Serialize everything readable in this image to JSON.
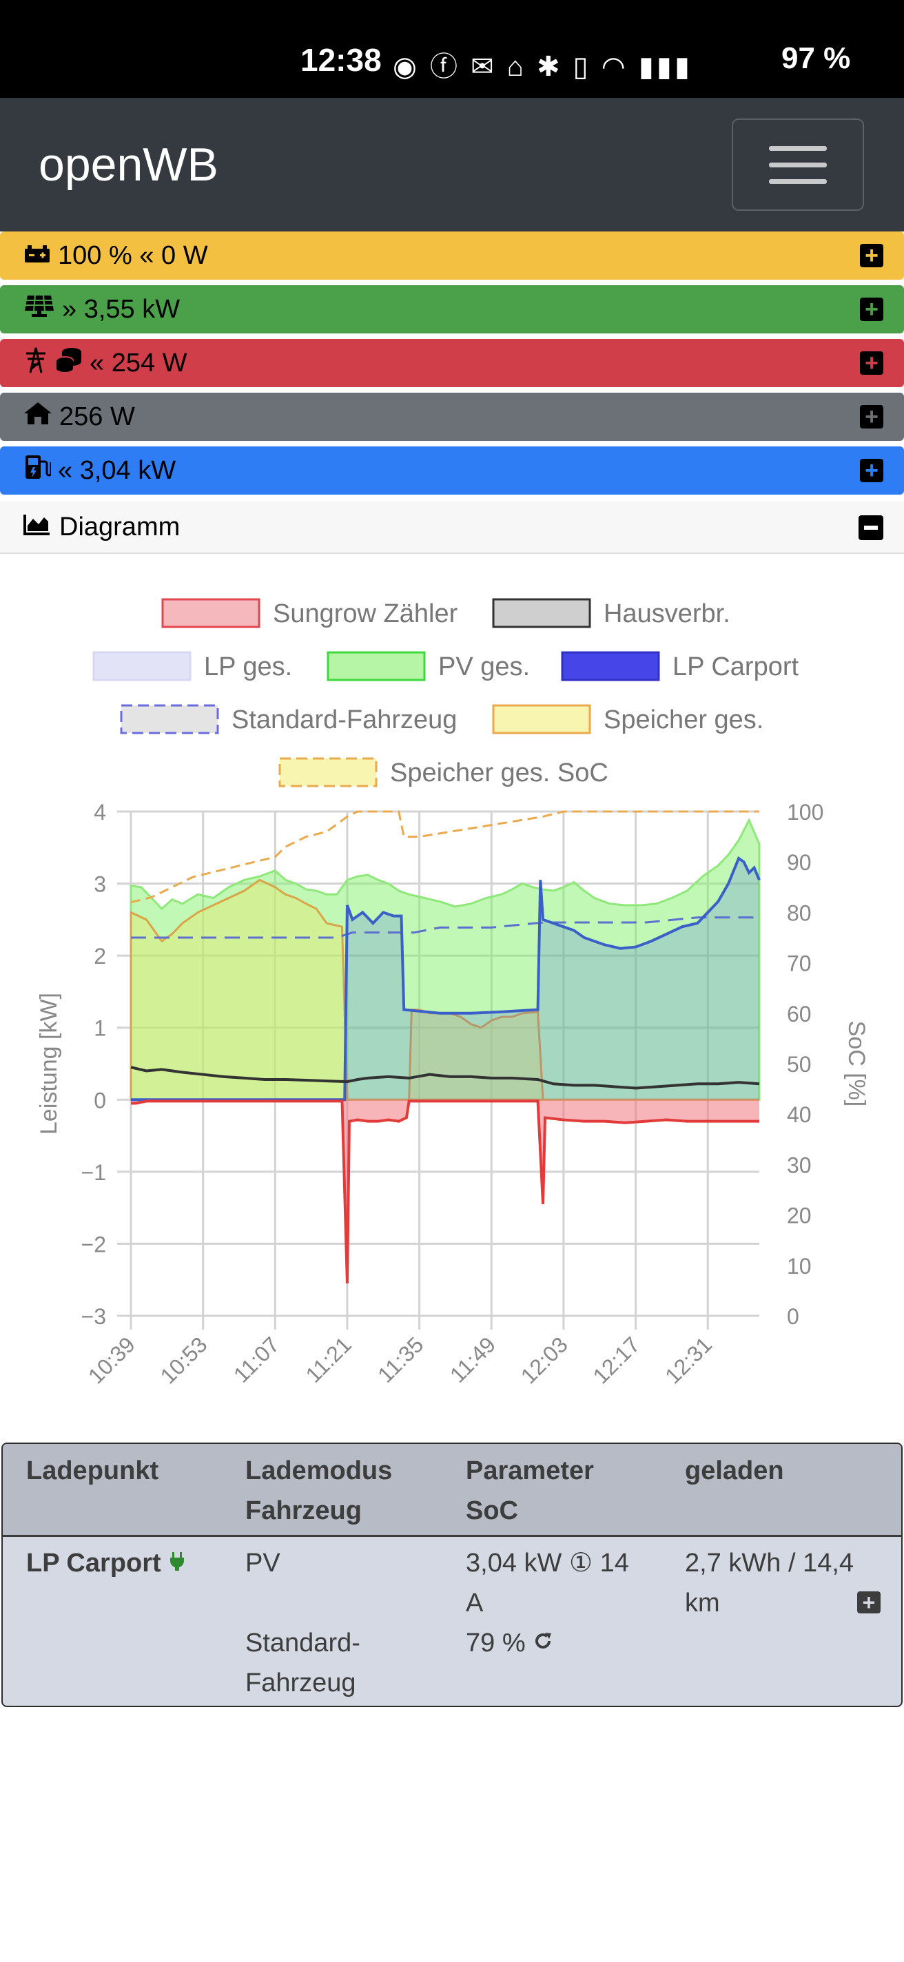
{
  "status_bar": {
    "time": "12:38",
    "icons": [
      "whatsapp-icon",
      "facebook-icon",
      "mail-icon",
      "smart-zone-icon",
      "bluetooth-icon",
      "vibrate-icon",
      "wifi-icon",
      "signal-icon",
      "battery-icon"
    ],
    "battery": "97 %"
  },
  "navbar": {
    "brand": "openWB"
  },
  "bars": {
    "battery": {
      "text": "100 % « 0 W",
      "color": "#f3c041"
    },
    "pv": {
      "text": "» 3,55 kW",
      "color": "#4ba14a"
    },
    "grid": {
      "text": "« 254 W",
      "color": "#cf3e49"
    },
    "house": {
      "text": "256 W",
      "color": "#6c7178"
    },
    "charge": {
      "text": "« 3,04 kW",
      "color": "#2f7df4"
    }
  },
  "diagram": {
    "title": "Diagramm"
  },
  "chart_data": {
    "type": "area",
    "legend": [
      {
        "name": "Sungrow Zähler",
        "fill": "#f5b9bd",
        "stroke": "#e0474f",
        "dashed": false
      },
      {
        "name": "Hausverbr.",
        "fill": "#cfcfcf",
        "stroke": "#333333",
        "dashed": false
      },
      {
        "name": "LP ges.",
        "fill": "#e3e3f8",
        "stroke": "#d7d7f2",
        "dashed": false
      },
      {
        "name": "PV ges.",
        "fill": "#b5f5a5",
        "stroke": "#3fd83f",
        "dashed": false
      },
      {
        "name": "LP Carport",
        "fill": "#4545e8",
        "stroke": "#3131c8",
        "dashed": false
      },
      {
        "name": "Standard-Fahrzeug",
        "fill": "#e4e4e4",
        "stroke": "#6b6be0",
        "dashed": true
      },
      {
        "name": "Speicher ges.",
        "fill": "#f7f5b0",
        "stroke": "#e9a94c",
        "dashed": false
      },
      {
        "name": "Speicher ges. SoC",
        "fill": "#f7f5b0",
        "stroke": "#e9a94c",
        "dashed": true
      }
    ],
    "ylabel_left": "Leistung [kW]",
    "ylabel_right": "SoC [%]",
    "ylim_left": [
      -3,
      4
    ],
    "ylim_right": [
      0,
      100
    ],
    "yticks_left": [
      "4",
      "3",
      "2",
      "1",
      "0",
      "−1",
      "−2",
      "−3"
    ],
    "yticks_right": [
      "100",
      "90",
      "80",
      "70",
      "60",
      "50",
      "40",
      "30",
      "20",
      "10",
      "0"
    ],
    "xticks": [
      "10:39",
      "10:53",
      "11:07",
      "11:21",
      "11:35",
      "11:49",
      "12:03",
      "12:17",
      "12:31"
    ],
    "x_range_min": [
      0,
      122
    ],
    "grid": true,
    "legend_position": "top",
    "series": {
      "pv_ges": [
        [
          0,
          2.97
        ],
        [
          2,
          2.95
        ],
        [
          4,
          2.8
        ],
        [
          6,
          2.65
        ],
        [
          8,
          2.78
        ],
        [
          10,
          2.72
        ],
        [
          13,
          2.85
        ],
        [
          16,
          2.8
        ],
        [
          19,
          2.95
        ],
        [
          22,
          3.05
        ],
        [
          25,
          3.1
        ],
        [
          28,
          3.18
        ],
        [
          30,
          3.05
        ],
        [
          32,
          3.0
        ],
        [
          34,
          2.92
        ],
        [
          36,
          2.9
        ],
        [
          38,
          2.85
        ],
        [
          40,
          2.85
        ],
        [
          42,
          3.05
        ],
        [
          44,
          3.1
        ],
        [
          46,
          3.12
        ],
        [
          48,
          3.05
        ],
        [
          50,
          3.0
        ],
        [
          52,
          2.9
        ],
        [
          54,
          2.85
        ],
        [
          57,
          2.8
        ],
        [
          60,
          2.75
        ],
        [
          63,
          2.68
        ],
        [
          66,
          2.72
        ],
        [
          69,
          2.8
        ],
        [
          72,
          2.85
        ],
        [
          74,
          2.92
        ],
        [
          76,
          3.0
        ],
        [
          78,
          2.95
        ],
        [
          80,
          2.92
        ],
        [
          82,
          2.9
        ],
        [
          84,
          2.95
        ],
        [
          86,
          3.02
        ],
        [
          88,
          2.9
        ],
        [
          90,
          2.8
        ],
        [
          93,
          2.72
        ],
        [
          96,
          2.7
        ],
        [
          99,
          2.7
        ],
        [
          102,
          2.72
        ],
        [
          105,
          2.8
        ],
        [
          108,
          2.9
        ],
        [
          111,
          3.1
        ],
        [
          114,
          3.25
        ],
        [
          116,
          3.4
        ],
        [
          118,
          3.6
        ],
        [
          120,
          3.88
        ],
        [
          122,
          3.55
        ]
      ],
      "speicher_ges": [
        [
          0,
          2.6
        ],
        [
          3,
          2.5
        ],
        [
          6,
          2.2
        ],
        [
          8,
          2.3
        ],
        [
          10,
          2.45
        ],
        [
          13,
          2.6
        ],
        [
          16,
          2.7
        ],
        [
          19,
          2.8
        ],
        [
          22,
          2.9
        ],
        [
          25,
          3.05
        ],
        [
          28,
          2.95
        ],
        [
          30,
          2.85
        ],
        [
          32,
          2.8
        ],
        [
          34,
          2.72
        ],
        [
          36,
          2.65
        ],
        [
          38,
          2.45
        ],
        [
          41,
          2.4
        ],
        [
          42,
          0.0
        ],
        [
          54,
          0.0
        ],
        [
          54.5,
          1.25
        ],
        [
          56,
          1.25
        ],
        [
          58,
          1.2
        ],
        [
          60,
          1.2
        ],
        [
          62,
          1.2
        ],
        [
          64,
          1.15
        ],
        [
          66,
          1.05
        ],
        [
          68,
          1.0
        ],
        [
          70,
          1.1
        ],
        [
          72,
          1.15
        ],
        [
          74,
          1.15
        ],
        [
          76,
          1.2
        ],
        [
          79,
          1.22
        ],
        [
          80,
          0.0
        ],
        [
          122,
          0.0
        ]
      ],
      "hausverbr": [
        [
          0,
          0.45
        ],
        [
          3,
          0.4
        ],
        [
          6,
          0.42
        ],
        [
          10,
          0.38
        ],
        [
          14,
          0.35
        ],
        [
          18,
          0.32
        ],
        [
          22,
          0.3
        ],
        [
          26,
          0.28
        ],
        [
          30,
          0.28
        ],
        [
          34,
          0.27
        ],
        [
          38,
          0.26
        ],
        [
          42,
          0.25
        ],
        [
          44,
          0.28
        ],
        [
          46,
          0.3
        ],
        [
          50,
          0.32
        ],
        [
          54,
          0.3
        ],
        [
          58,
          0.35
        ],
        [
          62,
          0.32
        ],
        [
          66,
          0.32
        ],
        [
          70,
          0.3
        ],
        [
          74,
          0.3
        ],
        [
          79,
          0.28
        ],
        [
          82,
          0.22
        ],
        [
          86,
          0.2
        ],
        [
          90,
          0.2
        ],
        [
          94,
          0.18
        ],
        [
          98,
          0.16
        ],
        [
          102,
          0.18
        ],
        [
          106,
          0.2
        ],
        [
          110,
          0.22
        ],
        [
          114,
          0.22
        ],
        [
          118,
          0.24
        ],
        [
          122,
          0.22
        ]
      ],
      "sungrow_zaehler": [
        [
          0,
          -0.05
        ],
        [
          1,
          -0.05
        ],
        [
          3,
          -0.02
        ],
        [
          6,
          -0.02
        ],
        [
          10,
          -0.02
        ],
        [
          20,
          -0.02
        ],
        [
          30,
          -0.02
        ],
        [
          41,
          -0.02
        ],
        [
          42,
          -2.55
        ],
        [
          42.4,
          -0.3
        ],
        [
          44,
          -0.28
        ],
        [
          46,
          -0.3
        ],
        [
          48,
          -0.3
        ],
        [
          50,
          -0.28
        ],
        [
          52,
          -0.3
        ],
        [
          53.5,
          -0.25
        ],
        [
          54,
          -0.02
        ],
        [
          60,
          -0.02
        ],
        [
          70,
          -0.02
        ],
        [
          79,
          -0.02
        ],
        [
          80,
          -1.45
        ],
        [
          80.4,
          -0.25
        ],
        [
          84,
          -0.28
        ],
        [
          88,
          -0.3
        ],
        [
          92,
          -0.3
        ],
        [
          96,
          -0.32
        ],
        [
          100,
          -0.3
        ],
        [
          104,
          -0.28
        ],
        [
          108,
          -0.3
        ],
        [
          112,
          -0.3
        ],
        [
          116,
          -0.3
        ],
        [
          120,
          -0.3
        ],
        [
          122,
          -0.3
        ]
      ],
      "lp_carport": [
        [
          0,
          0
        ],
        [
          41.5,
          0
        ],
        [
          42,
          2.7
        ],
        [
          43,
          2.5
        ],
        [
          45,
          2.6
        ],
        [
          47,
          2.45
        ],
        [
          49,
          2.6
        ],
        [
          51,
          2.55
        ],
        [
          52.5,
          2.55
        ],
        [
          53,
          1.25
        ],
        [
          60,
          1.2
        ],
        [
          66,
          1.2
        ],
        [
          72,
          1.22
        ],
        [
          79,
          1.25
        ],
        [
          79.5,
          3.05
        ],
        [
          80,
          2.5
        ],
        [
          82,
          2.45
        ],
        [
          84,
          2.4
        ],
        [
          86,
          2.35
        ],
        [
          88,
          2.25
        ],
        [
          90,
          2.2
        ],
        [
          92,
          2.15
        ],
        [
          95,
          2.1
        ],
        [
          98,
          2.12
        ],
        [
          101,
          2.2
        ],
        [
          104,
          2.3
        ],
        [
          107,
          2.4
        ],
        [
          110,
          2.45
        ],
        [
          112,
          2.6
        ],
        [
          114,
          2.75
        ],
        [
          116,
          3.0
        ],
        [
          118,
          3.35
        ],
        [
          119,
          3.3
        ],
        [
          120,
          3.15
        ],
        [
          121,
          3.22
        ],
        [
          122,
          3.05
        ]
      ],
      "standard_fahrzeug_soc": [
        [
          0,
          75
        ],
        [
          40,
          75
        ],
        [
          43,
          76
        ],
        [
          55,
          76
        ],
        [
          60,
          77
        ],
        [
          70,
          77
        ],
        [
          80,
          78
        ],
        [
          100,
          78
        ],
        [
          110,
          79
        ],
        [
          122,
          79
        ]
      ],
      "speicher_soc": [
        [
          0,
          82
        ],
        [
          4,
          83
        ],
        [
          8,
          85
        ],
        [
          12,
          87
        ],
        [
          16,
          88
        ],
        [
          20,
          89
        ],
        [
          24,
          90
        ],
        [
          28,
          91
        ],
        [
          30,
          93
        ],
        [
          34,
          95
        ],
        [
          38,
          96
        ],
        [
          42,
          99
        ],
        [
          44,
          100
        ],
        [
          52,
          100
        ],
        [
          53,
          95
        ],
        [
          56,
          95
        ],
        [
          62,
          96
        ],
        [
          68,
          97
        ],
        [
          74,
          98
        ],
        [
          80,
          99
        ],
        [
          84,
          100
        ],
        [
          122,
          100
        ]
      ]
    }
  },
  "table": {
    "headers": {
      "ladepunkt": "Ladepunkt",
      "lademodus": "Lademodus",
      "fahrzeug": "Fahrzeug",
      "parameter": "Parameter",
      "soc": "SoC",
      "geladen": "geladen"
    },
    "row": {
      "name": "LP Carport",
      "mode": "PV",
      "vehicle_1": "Standard-",
      "vehicle_2": "Fahrzeug",
      "param_1": "3,04 kW ① 14",
      "param_2": "A",
      "soc": "79 %",
      "charged_1": "2,7 kWh / 14,4",
      "charged_2": "km"
    }
  }
}
